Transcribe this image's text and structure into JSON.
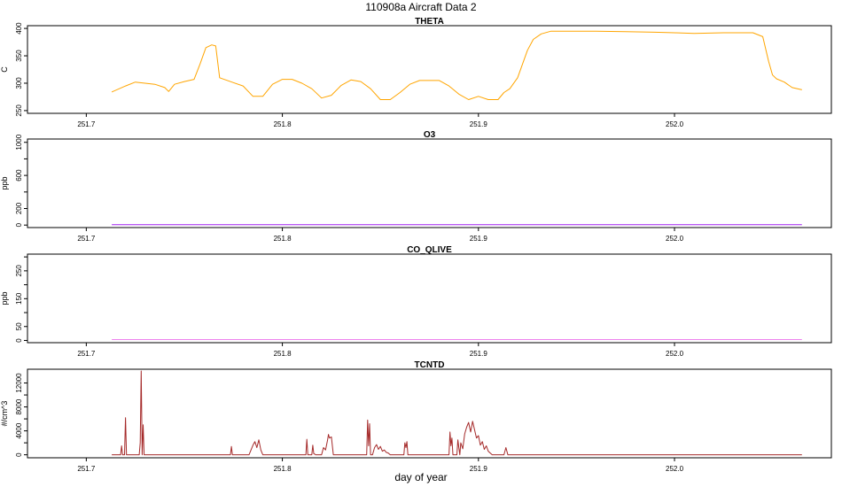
{
  "figure": {
    "title": "110908a   Aircraft Data 2",
    "xlabel": "day of year"
  },
  "chart_data": [
    {
      "type": "line",
      "title": "THETA",
      "ylabel": "C",
      "color": "#ffa500",
      "xlim": [
        251.67,
        252.08
      ],
      "ylim": [
        245,
        405
      ],
      "xticks": [
        251.7,
        251.8,
        251.9,
        252.0
      ],
      "xtick_labels": [
        "251.7",
        "251.8",
        "251.9",
        "252.0"
      ],
      "yticks": [
        250,
        300,
        350,
        400
      ],
      "ytick_labels": [
        "250",
        "300",
        "350",
        "400"
      ],
      "x": [
        251.713,
        251.72,
        251.725,
        251.735,
        251.74,
        251.742,
        251.745,
        251.75,
        251.755,
        251.758,
        251.761,
        251.764,
        251.766,
        251.768,
        251.775,
        251.78,
        251.785,
        251.79,
        251.795,
        251.8,
        251.805,
        251.81,
        251.815,
        251.82,
        251.825,
        251.83,
        251.835,
        251.84,
        251.845,
        251.85,
        251.855,
        251.86,
        251.865,
        251.87,
        251.875,
        251.88,
        251.885,
        251.89,
        251.895,
        251.9,
        251.905,
        251.91,
        251.913,
        251.916,
        251.92,
        251.925,
        251.928,
        251.932,
        251.937,
        251.945,
        251.96,
        251.975,
        251.99,
        252.0,
        252.01,
        252.025,
        252.04,
        252.045,
        252.048,
        252.05,
        252.052,
        252.056,
        252.06,
        252.065
      ],
      "y": [
        284,
        295,
        302,
        298,
        292,
        285,
        298,
        303,
        307,
        335,
        365,
        370,
        368,
        310,
        301,
        295,
        276,
        276,
        298,
        307,
        307,
        300,
        290,
        273,
        278,
        296,
        306,
        303,
        290,
        270,
        270,
        283,
        298,
        305,
        305,
        305,
        295,
        280,
        270,
        276,
        270,
        270,
        283,
        290,
        310,
        360,
        380,
        390,
        395,
        395,
        395,
        394,
        393,
        392,
        391,
        392,
        392,
        385,
        340,
        315,
        308,
        302,
        292,
        288
      ]
    },
    {
      "type": "line",
      "title": "O3",
      "ylabel": "ppb",
      "color": "#a020f0",
      "xlim": [
        251.67,
        252.08
      ],
      "ylim": [
        -30,
        1040
      ],
      "xticks": [
        251.7,
        251.8,
        251.9,
        252.0
      ],
      "xtick_labels": [
        "251.7",
        "251.8",
        "251.9",
        "252.0"
      ],
      "yticks": [
        0,
        200,
        400,
        600,
        800,
        1000
      ],
      "ytick_labels": [
        "0",
        "200",
        "",
        "600",
        "",
        "1000"
      ],
      "x": [
        251.713,
        252.065
      ],
      "y": [
        5,
        5
      ]
    },
    {
      "type": "line",
      "title": "CO_QLIVE",
      "ylabel": "ppb",
      "color": "#ee82ee",
      "xlim": [
        251.67,
        252.08
      ],
      "ylim": [
        -8,
        310
      ],
      "xticks": [
        251.7,
        251.8,
        251.9,
        252.0
      ],
      "xtick_labels": [
        "251.7",
        "251.8",
        "251.9",
        "252.0"
      ],
      "yticks": [
        0,
        50,
        100,
        150,
        200,
        250,
        300
      ],
      "ytick_labels": [
        "0",
        "50",
        "",
        "150",
        "",
        "250",
        ""
      ],
      "x": [
        251.713,
        252.065
      ],
      "y": [
        3,
        3
      ]
    },
    {
      "type": "line",
      "title": "TCNTD",
      "ylabel": "#/cm^3",
      "color": "#a52a2a",
      "xlim": [
        251.67,
        252.08
      ],
      "ylim": [
        -500,
        14300
      ],
      "xticks": [
        251.7,
        251.8,
        251.9,
        252.0
      ],
      "xtick_labels": [
        "251.7",
        "251.8",
        "251.9",
        "252.0"
      ],
      "yticks": [
        0,
        2000,
        4000,
        6000,
        8000,
        10000,
        12000
      ],
      "ytick_labels": [
        "0",
        "",
        "4000",
        "",
        "8000",
        "",
        "12000"
      ],
      "x": [
        251.713,
        251.7175,
        251.718,
        251.7185,
        251.7195,
        251.72,
        251.7205,
        251.727,
        251.7275,
        251.728,
        251.7285,
        251.729,
        251.7295,
        251.7735,
        251.774,
        251.7745,
        251.783,
        251.785,
        251.786,
        251.787,
        251.788,
        251.789,
        251.79,
        251.812,
        251.8125,
        251.813,
        251.815,
        251.8155,
        251.816,
        251.817,
        251.82,
        251.821,
        251.822,
        251.823,
        251.8235,
        251.824,
        251.825,
        251.826,
        251.8265,
        251.827,
        251.843,
        251.8435,
        251.844,
        251.8445,
        251.845,
        251.846,
        251.847,
        251.848,
        251.849,
        251.85,
        251.851,
        251.852,
        251.853,
        251.854,
        251.855,
        251.862,
        251.8625,
        251.863,
        251.8635,
        251.864,
        251.885,
        251.8855,
        251.886,
        251.8865,
        251.887,
        251.889,
        251.8895,
        251.89,
        251.8905,
        251.891,
        251.892,
        251.893,
        251.894,
        251.895,
        251.896,
        251.897,
        251.898,
        251.899,
        251.9,
        251.901,
        251.902,
        251.903,
        251.904,
        251.905,
        251.906,
        251.907,
        251.913,
        251.914,
        251.915,
        252.065
      ],
      "y": [
        0,
        0,
        1500,
        0,
        0,
        6200,
        0,
        0,
        2000,
        14000,
        0,
        5000,
        0,
        0,
        1400,
        0,
        0,
        1600,
        2200,
        1200,
        2500,
        800,
        0,
        0,
        2600,
        0,
        0,
        1600,
        200,
        0,
        0,
        1200,
        800,
        2400,
        3400,
        2800,
        3000,
        0,
        0,
        0,
        0,
        5800,
        1500,
        5200,
        0,
        0,
        1200,
        1700,
        900,
        1400,
        600,
        800,
        400,
        300,
        0,
        0,
        2000,
        1200,
        2200,
        0,
        0,
        3800,
        1500,
        2800,
        0,
        0,
        2500,
        1200,
        0,
        2000,
        1000,
        3500,
        4600,
        5400,
        3800,
        5600,
        4200,
        2800,
        3200,
        1600,
        2200,
        900,
        1500,
        600,
        300,
        0,
        0,
        1200,
        0,
        0
      ]
    }
  ]
}
